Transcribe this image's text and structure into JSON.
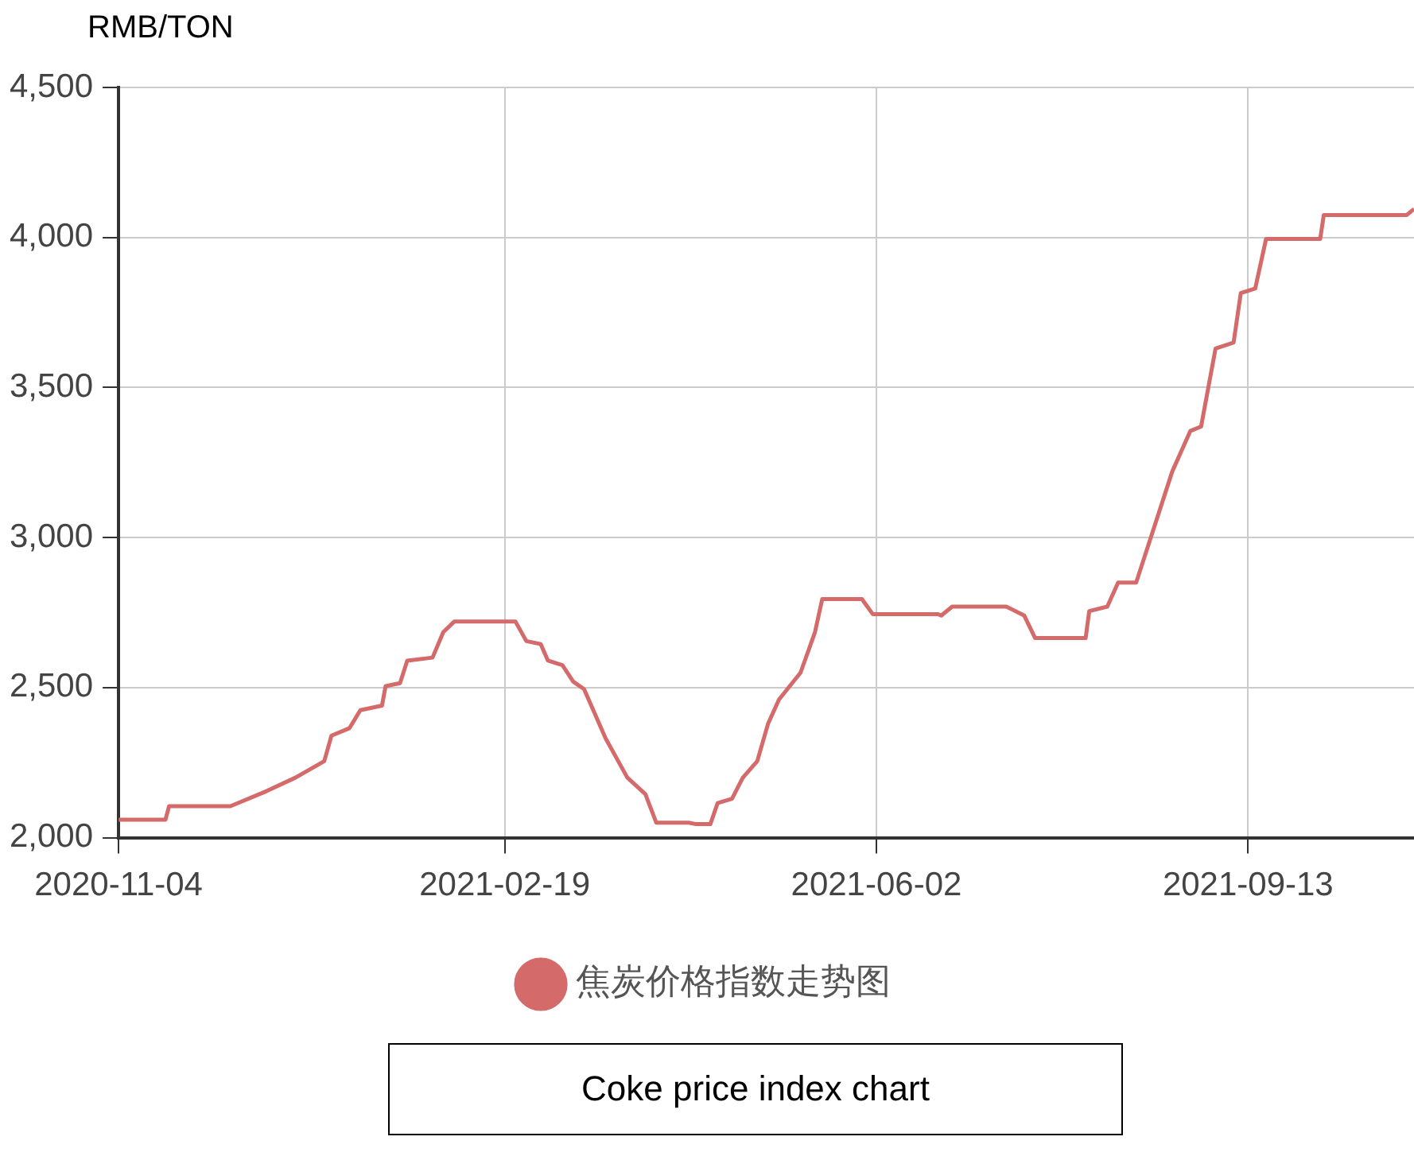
{
  "chart_data": {
    "type": "line",
    "ylabel": "RMB/TON",
    "annotations": [
      "Coke price index chart"
    ],
    "x": [
      "2020-11-04",
      "2020-11-17",
      "2020-11-18",
      "2020-12-05",
      "2020-12-15",
      "2020-12-23",
      "2020-12-31",
      "2021-01-02",
      "2021-01-07",
      "2021-01-10",
      "2021-01-16",
      "2021-01-17",
      "2021-01-21",
      "2021-01-23",
      "2021-01-30",
      "2021-02-02",
      "2021-02-05",
      "2021-02-22",
      "2021-02-25",
      "2021-03-01",
      "2021-03-03",
      "2021-03-07",
      "2021-03-10",
      "2021-03-13",
      "2021-03-19",
      "2021-03-25",
      "2021-03-30",
      "2021-04-02",
      "2021-04-11",
      "2021-04-13",
      "2021-04-17",
      "2021-04-19",
      "2021-04-23",
      "2021-04-26",
      "2021-04-30",
      "2021-05-03",
      "2021-05-06",
      "2021-05-12",
      "2021-05-16",
      "2021-05-18",
      "2021-05-29",
      "2021-06-01",
      "2021-06-19",
      "2021-06-20",
      "2021-06-23",
      "2021-07-08",
      "2021-07-13",
      "2021-07-16",
      "2021-07-30",
      "2021-07-31",
      "2021-08-05",
      "2021-08-08",
      "2021-08-13",
      "2021-08-18",
      "2021-08-23",
      "2021-08-28",
      "2021-08-31",
      "2021-09-04",
      "2021-09-09",
      "2021-09-11",
      "2021-09-15",
      "2021-09-18",
      "2021-10-03",
      "2021-10-04",
      "2021-10-27",
      "2021-10-29"
    ],
    "series": [
      {
        "name": "焦炭价格指数走势图",
        "color": "#d46a6a",
        "values": [
          2060,
          2060,
          2105,
          2105,
          2155,
          2200,
          2255,
          2340,
          2365,
          2425,
          2440,
          2505,
          2515,
          2590,
          2600,
          2685,
          2720,
          2720,
          2655,
          2645,
          2590,
          2575,
          2520,
          2495,
          2330,
          2200,
          2145,
          2050,
          2050,
          2045,
          2045,
          2115,
          2130,
          2200,
          2255,
          2380,
          2460,
          2550,
          2685,
          2795,
          2795,
          2745,
          2745,
          2740,
          2770,
          2770,
          2740,
          2665,
          2665,
          2755,
          2770,
          2850,
          2850,
          3035,
          3220,
          3355,
          3370,
          3630,
          3650,
          3815,
          3830,
          3995,
          3995,
          4075,
          4075,
          4095
        ]
      }
    ],
    "xlim": [
      "2020-11-04",
      "2021-10-29"
    ],
    "xticks": [
      "2020-11-04",
      "2021-02-19",
      "2021-06-02",
      "2021-09-13"
    ],
    "ylim": [
      2000,
      4500
    ],
    "yticks": [
      {
        "value": 2000,
        "label": "2,000"
      },
      {
        "value": 2500,
        "label": "2,500"
      },
      {
        "value": 3000,
        "label": "3,000"
      },
      {
        "value": 3500,
        "label": "3,500"
      },
      {
        "value": 4000,
        "label": "4,000"
      },
      {
        "value": 4500,
        "label": "4,500"
      }
    ],
    "grid": true,
    "legend": "bottom",
    "marker": "none",
    "line_style": "solid"
  }
}
